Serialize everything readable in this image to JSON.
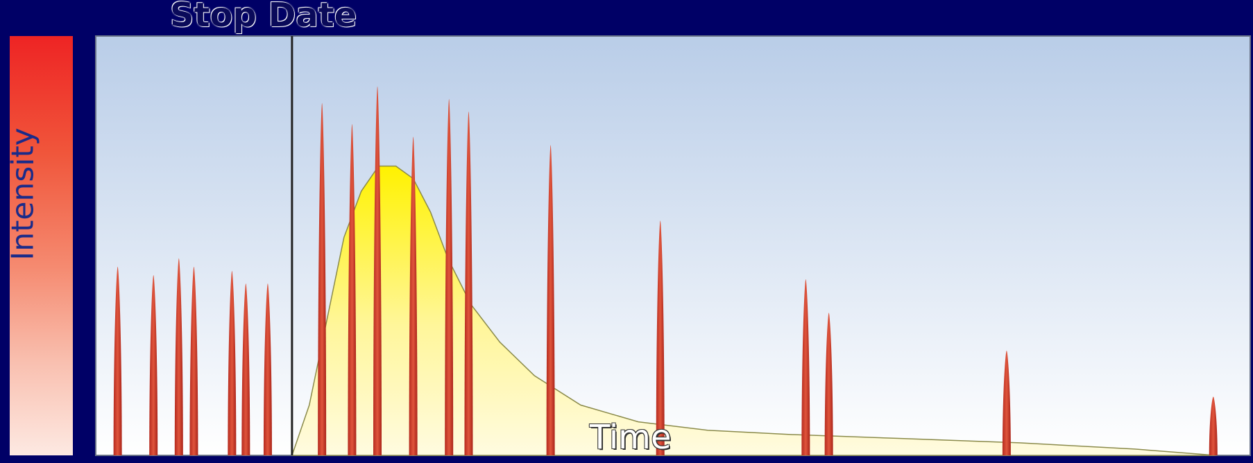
{
  "diagram": {
    "y_axis_label": "Intensity",
    "x_axis_label": "Time",
    "marker_label": "Stop Date",
    "colors": {
      "background": "#000066",
      "plot_top": "#b9cde8",
      "plot_bottom": "#ffffff",
      "spike": "#c0392b",
      "curve_fill": "#fff200",
      "stop_line": "#222222"
    }
  },
  "chart_data": {
    "type": "area",
    "x_range": [
      0,
      100
    ],
    "y_range": [
      0,
      100
    ],
    "stop_date_x": 17.0,
    "spikes": [
      {
        "x": 1.9,
        "y": 45
      },
      {
        "x": 5.0,
        "y": 43
      },
      {
        "x": 7.2,
        "y": 47
      },
      {
        "x": 8.5,
        "y": 45
      },
      {
        "x": 11.8,
        "y": 44
      },
      {
        "x": 13.0,
        "y": 41
      },
      {
        "x": 14.9,
        "y": 41
      },
      {
        "x": 19.6,
        "y": 84
      },
      {
        "x": 22.2,
        "y": 79
      },
      {
        "x": 24.4,
        "y": 88
      },
      {
        "x": 27.5,
        "y": 76
      },
      {
        "x": 30.6,
        "y": 85
      },
      {
        "x": 32.3,
        "y": 82
      },
      {
        "x": 39.4,
        "y": 74
      },
      {
        "x": 48.9,
        "y": 56
      },
      {
        "x": 61.5,
        "y": 42
      },
      {
        "x": 63.5,
        "y": 34
      },
      {
        "x": 78.9,
        "y": 25
      },
      {
        "x": 96.8,
        "y": 14
      }
    ],
    "curve": [
      {
        "x": 17.0,
        "y": 0
      },
      {
        "x": 18.5,
        "y": 12
      },
      {
        "x": 20.0,
        "y": 32
      },
      {
        "x": 21.5,
        "y": 52
      },
      {
        "x": 23.0,
        "y": 63
      },
      {
        "x": 24.5,
        "y": 69
      },
      {
        "x": 26.0,
        "y": 69
      },
      {
        "x": 27.5,
        "y": 66
      },
      {
        "x": 29.0,
        "y": 58
      },
      {
        "x": 30.5,
        "y": 47
      },
      {
        "x": 32.5,
        "y": 36
      },
      {
        "x": 35.0,
        "y": 27
      },
      {
        "x": 38.0,
        "y": 19
      },
      {
        "x": 42.0,
        "y": 12
      },
      {
        "x": 47.0,
        "y": 8
      },
      {
        "x": 53.0,
        "y": 6
      },
      {
        "x": 60.0,
        "y": 5
      },
      {
        "x": 70.0,
        "y": 4
      },
      {
        "x": 80.0,
        "y": 3
      },
      {
        "x": 90.0,
        "y": 1.5
      },
      {
        "x": 97.0,
        "y": 0
      }
    ]
  }
}
